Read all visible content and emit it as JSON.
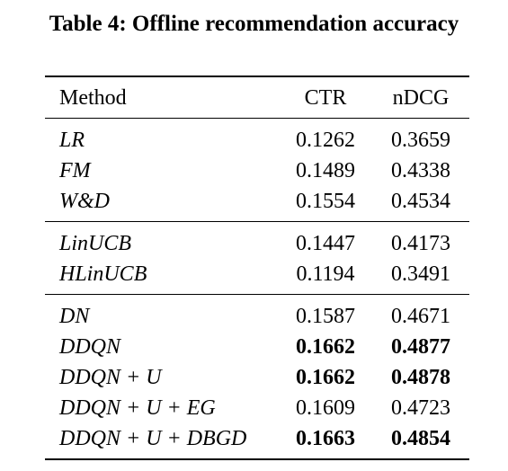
{
  "caption": "Table 4: Offline recommendation accuracy",
  "table": {
    "headers": [
      "Method",
      "CTR",
      "nDCG"
    ],
    "groups": [
      [
        {
          "method": "LR",
          "ctr": "0.1262",
          "ndcg": "0.3659",
          "ctr_bold": false,
          "ndcg_bold": false
        },
        {
          "method": "FM",
          "ctr": "0.1489",
          "ndcg": "0.4338",
          "ctr_bold": false,
          "ndcg_bold": false
        },
        {
          "method": "W&D",
          "ctr": "0.1554",
          "ndcg": "0.4534",
          "ctr_bold": false,
          "ndcg_bold": false
        }
      ],
      [
        {
          "method": "LinUCB",
          "ctr": "0.1447",
          "ndcg": "0.4173",
          "ctr_bold": false,
          "ndcg_bold": false
        },
        {
          "method": "HLinUCB",
          "ctr": "0.1194",
          "ndcg": "0.3491",
          "ctr_bold": false,
          "ndcg_bold": false
        }
      ],
      [
        {
          "method": "DN",
          "ctr": "0.1587",
          "ndcg": "0.4671",
          "ctr_bold": false,
          "ndcg_bold": false
        },
        {
          "method": "DDQN",
          "ctr": "0.1662",
          "ndcg": "0.4877",
          "ctr_bold": true,
          "ndcg_bold": true
        },
        {
          "method": "DDQN + U",
          "ctr": "0.1662",
          "ndcg": "0.4878",
          "ctr_bold": true,
          "ndcg_bold": true
        },
        {
          "method": "DDQN + U + EG",
          "ctr": "0.1609",
          "ndcg": "0.4723",
          "ctr_bold": false,
          "ndcg_bold": false
        },
        {
          "method": "DDQN + U + DBGD",
          "ctr": "0.1663",
          "ndcg": "0.4854",
          "ctr_bold": true,
          "ndcg_bold": true
        }
      ]
    ]
  }
}
